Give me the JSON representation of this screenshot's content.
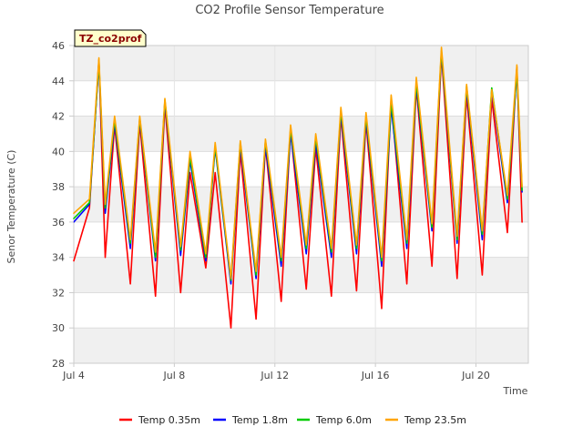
{
  "chart_data": {
    "type": "line",
    "title": "CO2 Profile Sensor Temperature",
    "xlabel": "Time",
    "ylabel": "Senor Temperature (C)",
    "site_tag": "TZ_co2prof",
    "x_unit": "date (2024, day of month in July)",
    "xlim": [
      "Jul 4",
      "Jul 22 2:00"
    ],
    "ylim": [
      28,
      46
    ],
    "yticks": [
      28,
      30,
      32,
      34,
      36,
      38,
      40,
      42,
      44,
      46
    ],
    "xticks": [
      "Jul 4",
      "Jul 8",
      "Jul 12",
      "Jul 16",
      "Jul 20"
    ],
    "grid": "horizontal bands",
    "legend_position": "bottom-center",
    "x": [
      "Jul 4 00:00",
      "Jul 4 15:00",
      "Jul 5 00:00",
      "Jul 5 06:00",
      "Jul 5 15:00",
      "Jul 6 06:00",
      "Jul 6 15:00",
      "Jul 7 06:00",
      "Jul 7 15:00",
      "Jul 8 06:00",
      "Jul 8 15:00",
      "Jul 9 06:00",
      "Jul 9 15:00",
      "Jul 10 06:00",
      "Jul 10 15:00",
      "Jul 11 06:00",
      "Jul 11 15:00",
      "Jul 12 06:00",
      "Jul 12 15:00",
      "Jul 13 06:00",
      "Jul 13 15:00",
      "Jul 14 06:00",
      "Jul 14 15:00",
      "Jul 15 06:00",
      "Jul 15 15:00",
      "Jul 16 06:00",
      "Jul 16 15:00",
      "Jul 17 06:00",
      "Jul 17 15:00",
      "Jul 18 06:00",
      "Jul 18 15:00",
      "Jul 19 06:00",
      "Jul 19 15:00",
      "Jul 20 06:00",
      "Jul 20 15:00",
      "Jul 21 06:00",
      "Jul 21 15:00",
      "Jul 21 20:00"
    ],
    "series": [
      {
        "name": "Temp 0.35m",
        "color": "#ff0000",
        "values": [
          33.8,
          36.8,
          45.2,
          34.0,
          41.5,
          32.5,
          41.6,
          31.8,
          42.6,
          32.0,
          38.8,
          33.4,
          38.8,
          30.0,
          40.0,
          30.5,
          40.3,
          31.5,
          41.2,
          32.2,
          40.2,
          31.8,
          42.0,
          32.1,
          41.7,
          31.1,
          43.0,
          32.5,
          43.6,
          33.5,
          45.5,
          32.8,
          43.2,
          33.0,
          43.0,
          35.4,
          44.8,
          36.0
        ]
      },
      {
        "name": "Temp 1.8m",
        "color": "#0000ff",
        "values": [
          36.0,
          37.0,
          45.0,
          36.5,
          41.6,
          34.5,
          41.8,
          33.8,
          42.8,
          34.1,
          39.5,
          33.8,
          40.2,
          32.5,
          40.3,
          32.8,
          40.3,
          33.5,
          41.0,
          34.2,
          40.5,
          34.0,
          42.1,
          34.2,
          41.8,
          33.5,
          42.5,
          34.5,
          43.7,
          35.5,
          45.6,
          34.8,
          43.5,
          35.0,
          43.4,
          37.1,
          44.5,
          37.7
        ]
      },
      {
        "name": "Temp 6.0m",
        "color": "#00cc00",
        "values": [
          36.2,
          37.1,
          45.1,
          36.8,
          41.8,
          34.8,
          41.9,
          34.0,
          42.9,
          34.4,
          39.7,
          34.0,
          40.3,
          32.7,
          40.5,
          33.0,
          40.6,
          33.8,
          41.3,
          34.5,
          40.8,
          34.3,
          42.3,
          34.5,
          42.0,
          33.8,
          42.8,
          34.8,
          43.9,
          35.7,
          45.7,
          35.0,
          43.7,
          35.3,
          43.6,
          37.3,
          44.6,
          37.8
        ]
      },
      {
        "name": "Temp 23.5m",
        "color": "#ffa500",
        "values": [
          36.5,
          37.3,
          45.3,
          37.0,
          42.0,
          35.0,
          42.0,
          34.3,
          43.0,
          34.6,
          40.0,
          34.2,
          40.5,
          32.8,
          40.6,
          33.2,
          40.7,
          34.0,
          41.5,
          34.7,
          41.0,
          34.5,
          42.5,
          34.7,
          42.2,
          34.0,
          43.2,
          35.0,
          44.2,
          35.9,
          45.9,
          35.2,
          43.8,
          35.5,
          43.5,
          37.5,
          44.9,
          38.0
        ]
      }
    ]
  }
}
